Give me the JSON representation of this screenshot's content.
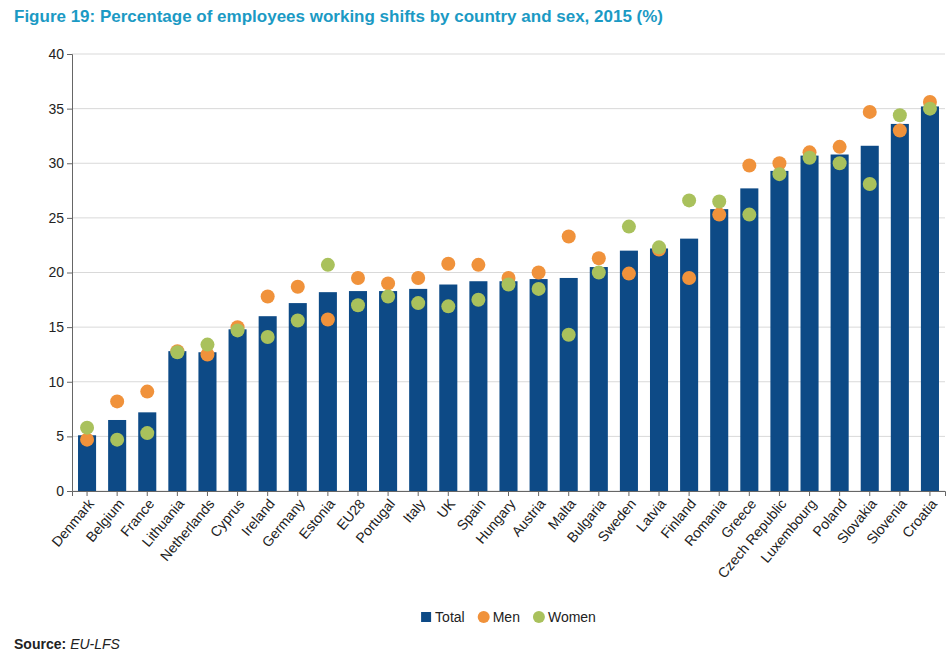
{
  "chart_data": {
    "type": "bar",
    "title": "Figure 19: Percentage of employees working shifts by country and sex, 2015 (%)",
    "source_label": "Source:",
    "source": "EU-LFS",
    "categories": [
      "Denmark",
      "Belgium",
      "France",
      "Lithuania",
      "Netherlands",
      "Cyprus",
      "Ireland",
      "Germany",
      "Estonia",
      "EU28",
      "Portugal",
      "Italy",
      "UK",
      "Spain",
      "Hungary",
      "Austria",
      "Malta",
      "Bulgaria",
      "Sweden",
      "Latvia",
      "Finland",
      "Romania",
      "Greece",
      "Czech Republic",
      "Luxembourg",
      "Poland",
      "Slovakia",
      "Slovenia",
      "Croatia"
    ],
    "series": [
      {
        "name": "Total",
        "type": "bar",
        "color": "#0d4a86",
        "values": [
          5.1,
          6.5,
          7.2,
          12.8,
          12.7,
          14.8,
          16.0,
          17.2,
          18.2,
          18.3,
          18.3,
          18.5,
          18.9,
          19.2,
          19.2,
          19.4,
          19.5,
          20.5,
          22.0,
          22.2,
          23.1,
          25.8,
          27.7,
          29.3,
          30.7,
          30.8,
          31.6,
          33.6,
          35.2
        ]
      },
      {
        "name": "Men",
        "type": "scatter",
        "marker": "circle",
        "color": "#f0923b",
        "values": [
          4.7,
          8.2,
          9.1,
          12.8,
          12.5,
          15.0,
          17.8,
          18.7,
          15.7,
          19.5,
          19.0,
          19.5,
          20.8,
          20.7,
          19.5,
          20.0,
          23.3,
          21.3,
          19.9,
          22.1,
          19.5,
          25.3,
          29.8,
          30.0,
          31.0,
          31.5,
          34.7,
          33.0,
          35.6
        ]
      },
      {
        "name": "Women",
        "type": "scatter",
        "marker": "circle",
        "color": "#a9c15c",
        "values": [
          5.8,
          4.7,
          5.3,
          12.7,
          13.4,
          14.7,
          14.1,
          15.6,
          20.7,
          17.0,
          17.8,
          17.2,
          16.9,
          17.5,
          18.9,
          18.5,
          14.3,
          20.0,
          24.2,
          22.3,
          26.6,
          26.5,
          25.3,
          29.0,
          30.5,
          30.0,
          28.1,
          34.4,
          35.0
        ]
      }
    ],
    "ylim": [
      0,
      40
    ],
    "yticks": [
      0,
      5,
      10,
      15,
      20,
      25,
      30,
      35,
      40
    ],
    "grid": true,
    "legend": "bottom"
  }
}
